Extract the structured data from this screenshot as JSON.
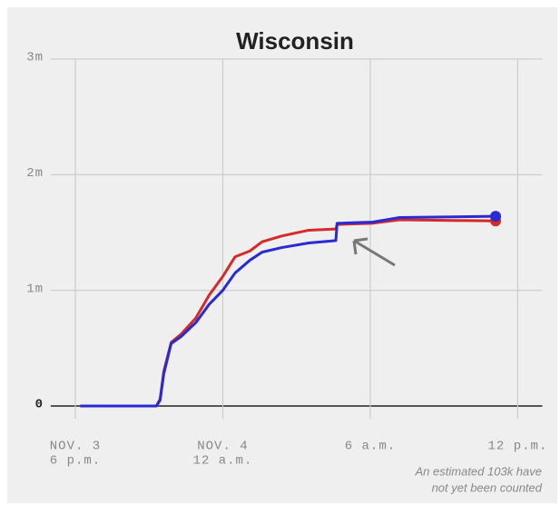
{
  "chart_data": {
    "type": "line",
    "title": "Wisconsin",
    "x": [
      0.2,
      3.3,
      3.45,
      3.6,
      3.9,
      4.3,
      4.9,
      5.45,
      6,
      6.5,
      7.1,
      7.6,
      8.4,
      9.5,
      10.6,
      10.65,
      12.1,
      13.2,
      17.1
    ],
    "series": [
      {
        "color": "#d42a2a",
        "values": [
          0,
          0,
          60000,
          300000,
          550000,
          620000,
          760000,
          960000,
          1120000,
          1290000,
          1340000,
          1420000,
          1470000,
          1520000,
          1530000,
          1570000,
          1580000,
          1610000,
          1600000
        ]
      },
      {
        "color": "#2a2ad4",
        "values": [
          0,
          0,
          50000,
          280000,
          540000,
          600000,
          720000,
          880000,
          1000000,
          1150000,
          1260000,
          1330000,
          1370000,
          1410000,
          1430000,
          1580000,
          1590000,
          1630000,
          1640000
        ]
      }
    ],
    "xlim": [
      -1,
      19
    ],
    "xticks": [
      {
        "value": 0,
        "label": [
          "NOV. 3",
          "6 p.m."
        ]
      },
      {
        "value": 6,
        "label": [
          "NOV. 4",
          "12 a.m."
        ]
      },
      {
        "value": 12,
        "label": "6 a.m."
      },
      {
        "value": 18,
        "label": "12 p.m."
      }
    ],
    "ylim": [
      0,
      3000000
    ],
    "yticks": [
      0,
      {
        "value": 1000000,
        "label": "1m"
      },
      {
        "value": 2000000,
        "label": "2m"
      },
      {
        "value": 3000000,
        "label": "3m"
      }
    ],
    "grid": true,
    "end_marker": true,
    "annotation": [
      "An estimated 103k have",
      "not yet been counted"
    ]
  }
}
